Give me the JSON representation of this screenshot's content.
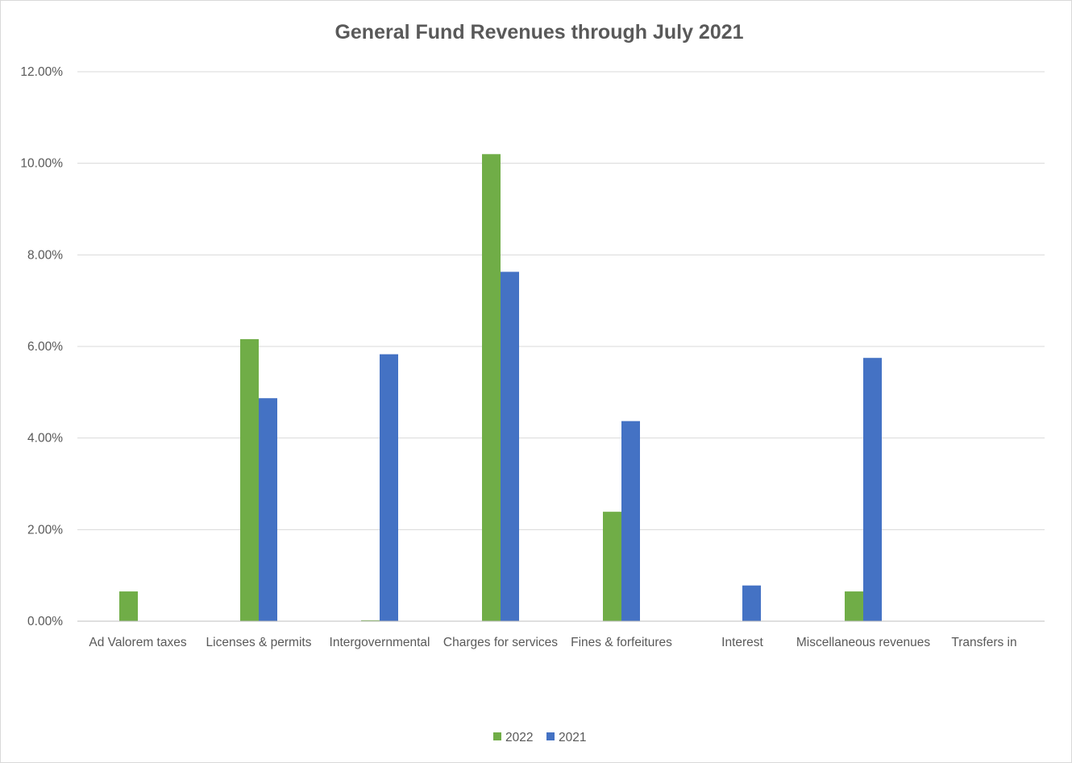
{
  "chart_data": {
    "type": "bar",
    "title": "General Fund Revenues through July 2021",
    "xlabel": "",
    "ylabel": "",
    "ylim": [
      0,
      0.12
    ],
    "y_tick_values": [
      0,
      0.02,
      0.04,
      0.06,
      0.08,
      0.1,
      0.12
    ],
    "y_tick_labels": [
      "0.00%",
      "2.00%",
      "4.00%",
      "6.00%",
      "8.00%",
      "10.00%",
      "12.00%"
    ],
    "grid": true,
    "legend_position": "bottom",
    "categories": [
      "Ad Valorem taxes",
      "Licenses & permits",
      "Intergovernmental",
      "Charges for services",
      "Fines & forfeitures",
      "Interest",
      "Miscellaneous revenues",
      "Transfers in"
    ],
    "series": [
      {
        "name": "2022",
        "color": "#70ad47",
        "values": [
          0.0065,
          0.0616,
          0.0002,
          0.102,
          0.0239,
          0.0,
          0.0065,
          0.0
        ]
      },
      {
        "name": "2021",
        "color": "#4472c4",
        "values": [
          0.0,
          0.0487,
          0.0583,
          0.0763,
          0.0437,
          0.0078,
          0.0575,
          0.0
        ]
      }
    ]
  }
}
